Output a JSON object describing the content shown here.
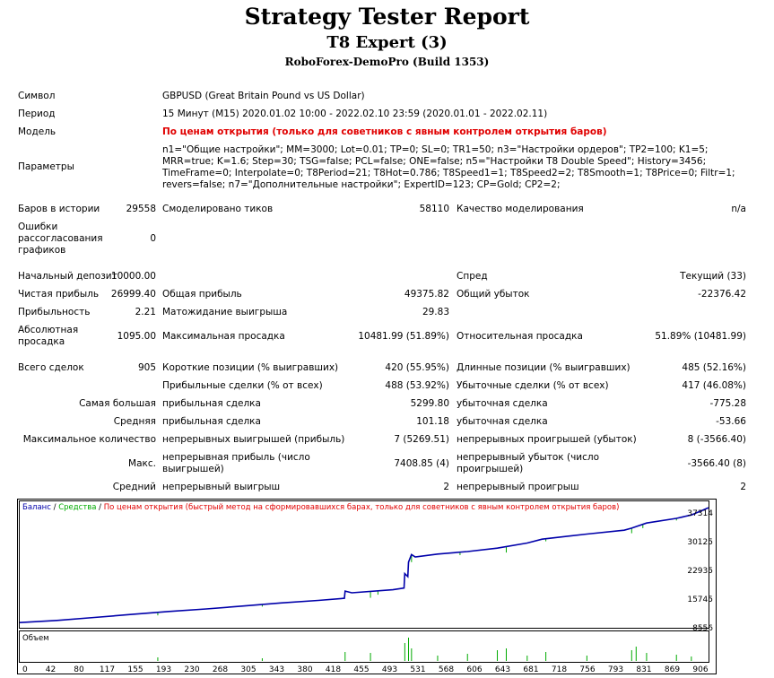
{
  "header": {
    "title": "Strategy Tester Report",
    "expert": "T8 Expert (3)",
    "server": "RoboForex-DemoPro (Build 1353)"
  },
  "info": {
    "symbol_label": "Символ",
    "symbol_value": "GBPUSD (Great Britain Pound vs US Dollar)",
    "period_label": "Период",
    "period_value": "15 Минут (M15) 2020.01.02 10:00 - 2022.02.10 23:59 (2020.01.01 - 2022.02.11)",
    "model_label": "Модель",
    "model_value": "По ценам открытия (только для советников с явным контролем открытия баров)",
    "params_label": "Параметры",
    "params_value": "n1=\"Общие настройки\"; MM=3000; Lot=0.01; TP=0; SL=0; TR1=50; n3=\"Настройки ордеров\"; TP2=100; K1=5; MRR=true; K=1.6; Step=30; TSG=false; PCL=false; ONE=false; n5=\"Настройки T8 Double Speed\"; History=3456; TimeFrame=0; Interpolate=0; T8Period=21; T8Hot=0.786; T8Speed1=1; T8Speed2=2; T8Smooth=1; T8Price=0; Filtr=1; revers=false; n7=\"Дополнительные настройки\"; ExpertID=123; CP=Gold; CP2=2;"
  },
  "stats": {
    "bars_label": "Баров в истории",
    "bars_value": "29558",
    "ticks_label": "Смоделировано тиков",
    "ticks_value": "58110",
    "quality_label": "Качество моделирования",
    "quality_value": "n/a",
    "errors_label": "Ошибки рассогласования графиков",
    "errors_value": "0",
    "deposit_label": "Начальный депозит",
    "deposit_value": "10000.00",
    "spread_label": "Спред",
    "spread_value": "Текущий (33)",
    "net_label": "Чистая прибыль",
    "net_value": "26999.40",
    "gross_profit_label": "Общая прибыль",
    "gross_profit_value": "49375.82",
    "gross_loss_label": "Общий убыток",
    "gross_loss_value": "-22376.42",
    "pf_label": "Прибыльность",
    "pf_value": "2.21",
    "expected_label": "Матожидание выигрыша",
    "expected_value": "29.83",
    "abs_dd_label": "Абсолютная просадка",
    "abs_dd_value": "1095.00",
    "max_dd_label": "Максимальная просадка",
    "max_dd_value": "10481.99 (51.89%)",
    "rel_dd_label": "Относительная просадка",
    "rel_dd_value": "51.89% (10481.99)",
    "total_label": "Всего сделок",
    "total_value": "905",
    "short_label": "Короткие позиции (% выигравших)",
    "short_value": "420 (55.95%)",
    "long_label": "Длинные позиции (% выигравших)",
    "long_value": "485 (52.16%)",
    "profit_trades_label": "Прибыльные сделки (% от всех)",
    "profit_trades_value": "488 (53.92%)",
    "loss_trades_label": "Убыточные сделки (% от всех)",
    "loss_trades_value": "417 (46.08%)",
    "largest_label": "Самая большая",
    "largest_profit_label": "прибыльная сделка",
    "largest_profit_value": "5299.80",
    "largest_loss_label": "убыточная сделка",
    "largest_loss_value": "-775.28",
    "average_label": "Средняя",
    "average_profit_label": "прибыльная сделка",
    "average_profit_value": "101.18",
    "average_loss_label": "убыточная сделка",
    "average_loss_value": "-53.66",
    "max_count_label": "Максимальное количество",
    "max_cons_wins_label": "непрерывных выигрышей (прибыль)",
    "max_cons_wins_value": "7 (5269.51)",
    "max_cons_losses_label": "непрерывных проигрышей (убыток)",
    "max_cons_losses_value": "8 (-3566.40)",
    "max_label": "Макс.",
    "max_cons_profit_label": "непрерывная прибыль (число выигрышей)",
    "max_cons_profit_value": "7408.85 (4)",
    "max_cons_loss_label": "непрерывный убыток (число проигрышей)",
    "max_cons_loss_value": "-3566.40 (8)",
    "avg_cons_label": "Средний",
    "avg_cons_wins_label": "непрерывный выигрыш",
    "avg_cons_wins_value": "2",
    "avg_cons_losses_label": "непрерывный проигрыш",
    "avg_cons_losses_value": "2"
  },
  "chart_data": {
    "type": "line",
    "legend": {
      "balance": "Баланс",
      "sep1": " / ",
      "equity": "Средства",
      "sep2": " / ",
      "model": "По ценам открытия (быстрый метод на сформировавшихся барах, только для советников с явным контролем открытия баров)"
    },
    "volume_label": "Объем",
    "y_ticks": [
      "37314",
      "30125",
      "22935",
      "15745",
      "8556"
    ],
    "x_ticks": [
      "0",
      "42",
      "80",
      "117",
      "155",
      "193",
      "230",
      "268",
      "305",
      "343",
      "380",
      "418",
      "455",
      "493",
      "531",
      "568",
      "606",
      "643",
      "681",
      "718",
      "756",
      "793",
      "831",
      "869",
      "906"
    ],
    "xlim": [
      0,
      923
    ],
    "ylim": [
      8556,
      38500
    ],
    "balance": [
      [
        0,
        10000
      ],
      [
        50,
        10500
      ],
      [
        100,
        11200
      ],
      [
        150,
        11900
      ],
      [
        200,
        12600
      ],
      [
        250,
        13200
      ],
      [
        300,
        13900
      ],
      [
        350,
        14600
      ],
      [
        400,
        15200
      ],
      [
        435,
        15700
      ],
      [
        436,
        17400
      ],
      [
        445,
        17000
      ],
      [
        500,
        17700
      ],
      [
        515,
        18100
      ],
      [
        516,
        21500
      ],
      [
        520,
        20800
      ],
      [
        521,
        24200
      ],
      [
        525,
        26000
      ],
      [
        530,
        25400
      ],
      [
        560,
        26100
      ],
      [
        600,
        26700
      ],
      [
        640,
        27500
      ],
      [
        680,
        28700
      ],
      [
        700,
        29600
      ],
      [
        760,
        30800
      ],
      [
        810,
        31700
      ],
      [
        820,
        32200
      ],
      [
        840,
        33400
      ],
      [
        880,
        34500
      ],
      [
        900,
        35300
      ],
      [
        923,
        36999
      ]
    ],
    "colors": {
      "balance": "#0000aa",
      "equity": "#00aa00",
      "model": "#e00000"
    }
  }
}
